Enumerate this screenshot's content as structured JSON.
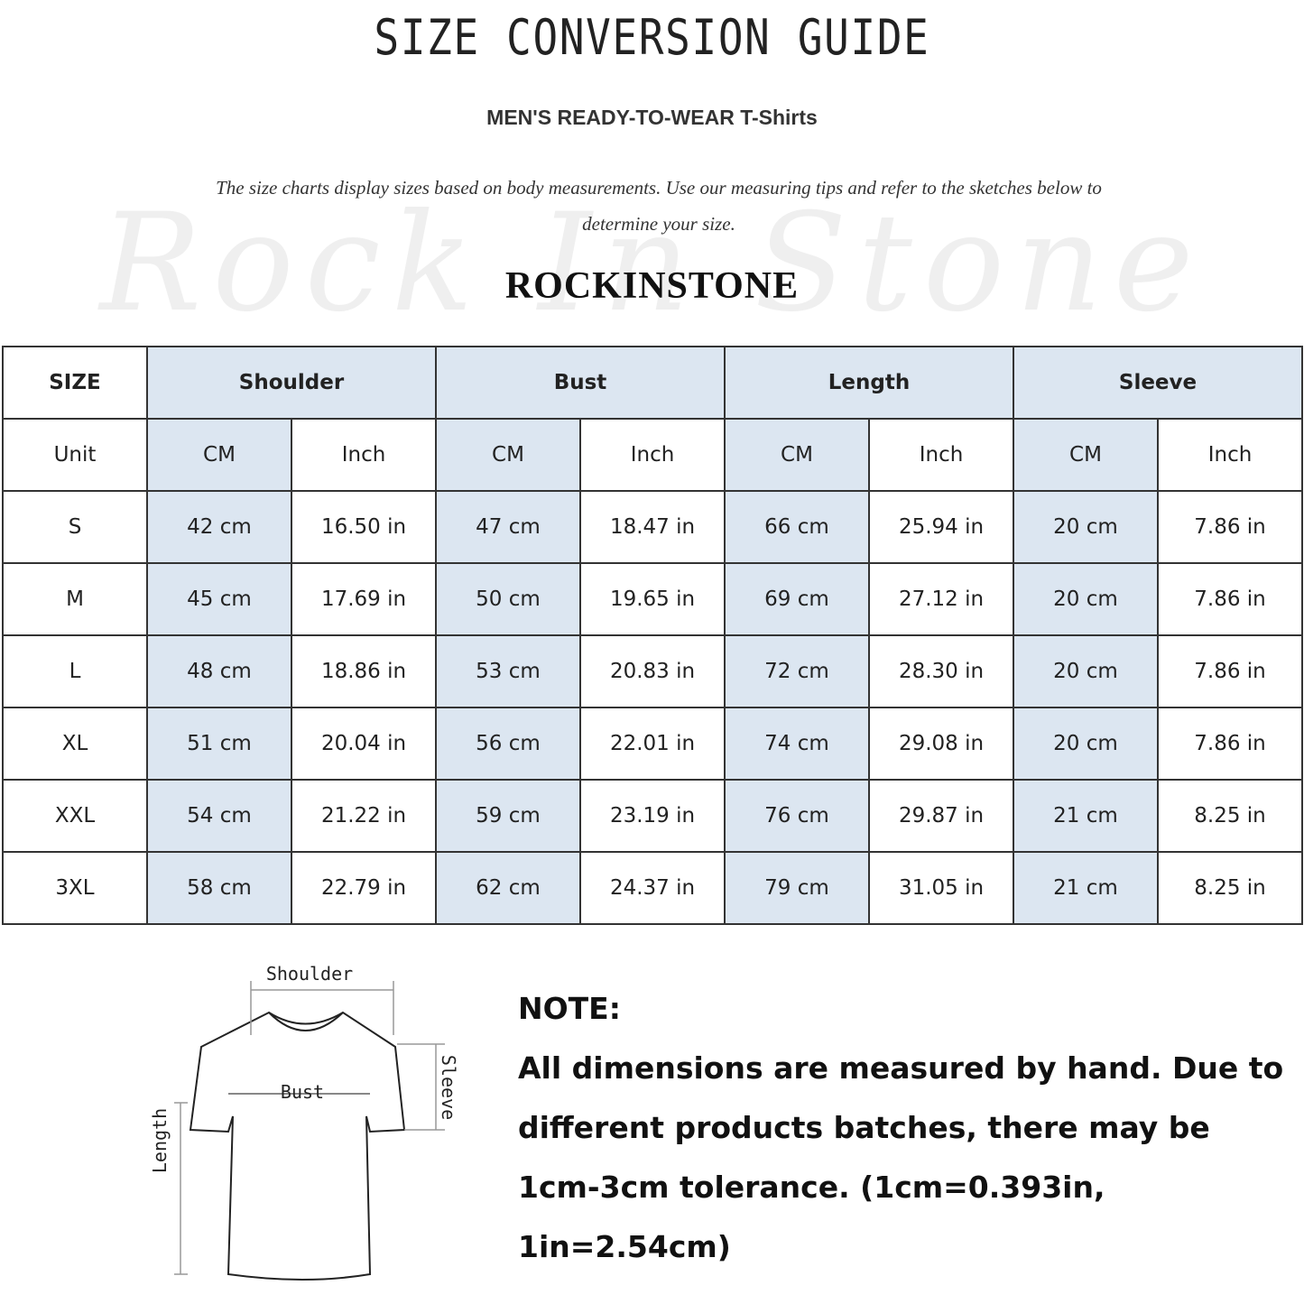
{
  "title": "SIZE CONVERSION GUIDE",
  "subtitle": "MEN'S READY-TO-WEAR T-Shirts",
  "description": "The size charts display sizes based on body measurements. Use our measuring tips and refer to the sketches below to determine your size.",
  "watermark": "Rock In Stone",
  "brand": "ROCKINSTONE",
  "table": {
    "header": [
      "SIZE",
      "Shoulder",
      "Bust",
      "Length",
      "Sleeve"
    ],
    "units": [
      "Unit",
      "CM",
      "Inch",
      "CM",
      "Inch",
      "CM",
      "Inch",
      "CM",
      "Inch"
    ],
    "rows": [
      [
        "S",
        "42 cm",
        "16.50 in",
        "47 cm",
        "18.47  in",
        "66 cm",
        "25.94  in",
        "20 cm",
        "7.86  in"
      ],
      [
        "M",
        "45 cm",
        "17.69  in",
        "50 cm",
        "19.65  in",
        "69 cm",
        "27.12  in",
        "20 cm",
        "7.86  in"
      ],
      [
        "L",
        "48 cm",
        "18.86  in",
        "53 cm",
        "20.83  in",
        "72 cm",
        "28.30  in",
        "20 cm",
        "7.86  in"
      ],
      [
        "XL",
        "51 cm",
        "20.04  in",
        "56 cm",
        "22.01  in",
        "74 cm",
        "29.08  in",
        "20 cm",
        "7.86  in"
      ],
      [
        "XXL",
        "54 cm",
        "21.22  in",
        "59 cm",
        "23.19  in",
        "76 cm",
        "29.87  in",
        "21 cm",
        "8.25  in"
      ],
      [
        "3XL",
        "58 cm",
        "22.79  in",
        "62 cm",
        "24.37  in",
        "79 cm",
        "31.05  in",
        "21 cm",
        "8.25  in"
      ]
    ],
    "highlight_color": "#dce6f1"
  },
  "sketch": {
    "shoulder": "Shoulder",
    "bust": "Bust",
    "length": "Length",
    "sleeve": "Sleeve"
  },
  "note": {
    "heading": "NOTE:",
    "text": "All dimensions are measured by hand. Due to different products batches, there may be 1cm-3cm tolerance. (1cm=0.393in, 1in=2.54cm)"
  }
}
